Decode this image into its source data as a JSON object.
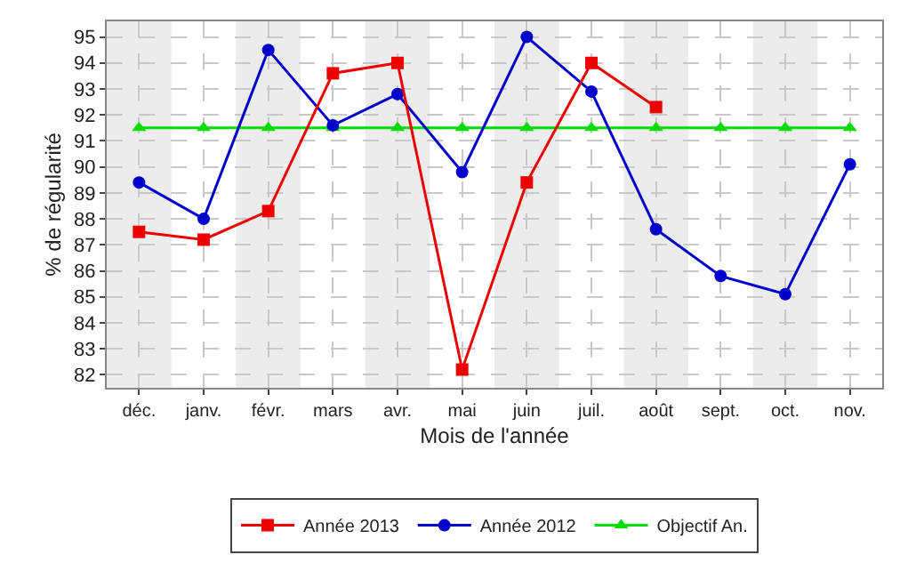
{
  "chart_data": {
    "type": "line",
    "xlabel": "Mois de l'année",
    "ylabel": "% de régularité",
    "categories": [
      "déc.",
      "janv.",
      "févr.",
      "mars",
      "avr.",
      "mai",
      "juin",
      "juil.",
      "août",
      "sept.",
      "oct.",
      "nov."
    ],
    "series": [
      {
        "name": "Année 2013",
        "color": "#ee0000",
        "marker": "square",
        "values": [
          87.5,
          87.2,
          88.3,
          93.6,
          94.0,
          82.2,
          89.4,
          94.0,
          92.3,
          null,
          null,
          null
        ]
      },
      {
        "name": "Année 2012",
        "color": "#0000cc",
        "marker": "circle",
        "values": [
          89.4,
          88.0,
          94.5,
          91.6,
          92.8,
          89.8,
          95.0,
          92.9,
          87.6,
          85.8,
          85.1,
          90.1
        ]
      },
      {
        "name": "Objectif An.",
        "color": "#00dd00",
        "marker": "triangle",
        "values": [
          91.5,
          91.5,
          91.5,
          91.5,
          91.5,
          91.5,
          91.5,
          91.5,
          91.5,
          91.5,
          91.5,
          91.5
        ]
      }
    ],
    "bands": [
      {
        "axis": "x",
        "from": "déc.",
        "to": "déc.",
        "color": "#ececec"
      },
      {
        "axis": "x",
        "from": "févr.",
        "to": "févr.",
        "color": "#ececec"
      },
      {
        "axis": "x",
        "from": "avr.",
        "to": "avr.",
        "color": "#ececec"
      },
      {
        "axis": "x",
        "from": "juin",
        "to": "juin",
        "color": "#ececec"
      },
      {
        "axis": "x",
        "from": "août",
        "to": "août",
        "color": "#ececec"
      },
      {
        "axis": "x",
        "from": "oct.",
        "to": "oct.",
        "color": "#ececec"
      }
    ],
    "ylim": [
      81.5,
      95.6
    ],
    "yticks": [
      82,
      83,
      84,
      85,
      86,
      87,
      88,
      89,
      90,
      91,
      92,
      93,
      94,
      95
    ],
    "grid": true,
    "legend": "bottom",
    "line_style": "solid"
  }
}
